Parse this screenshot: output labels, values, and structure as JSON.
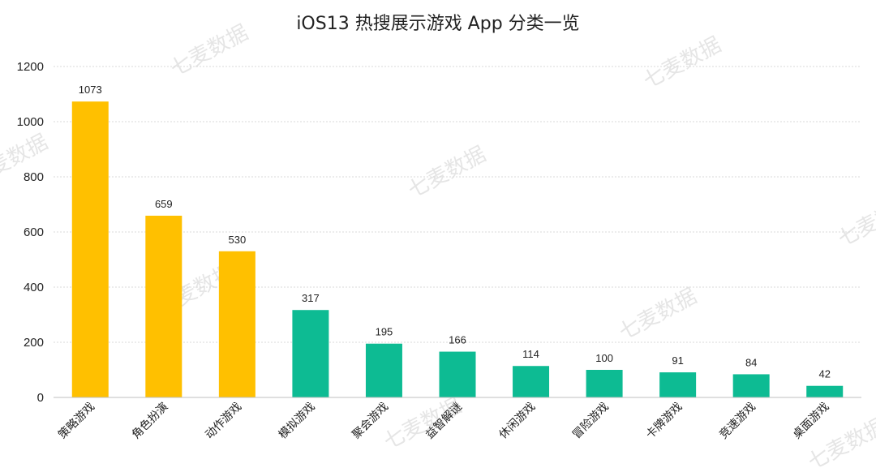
{
  "chart_data": {
    "type": "bar",
    "title": "iOS13 热搜展示游戏 App 分类一览",
    "categories": [
      "策略游戏",
      "角色扮演",
      "动作游戏",
      "模拟游戏",
      "聚会游戏",
      "益智解谜",
      "休闲游戏",
      "冒险游戏",
      "卡牌游戏",
      "竞速游戏",
      "桌面游戏"
    ],
    "values": [
      1073,
      659,
      530,
      317,
      195,
      166,
      114,
      100,
      91,
      84,
      42
    ],
    "colors": [
      "#FFC000",
      "#FFC000",
      "#FFC000",
      "#0DBB93",
      "#0DBB93",
      "#0DBB93",
      "#0DBB93",
      "#0DBB93",
      "#0DBB93",
      "#0DBB93",
      "#0DBB93"
    ],
    "ylim": [
      0,
      1200
    ],
    "yticks": [
      0,
      200,
      400,
      600,
      800,
      1000,
      1200
    ],
    "grid": true,
    "legend": "none"
  },
  "watermark": "七麦数据"
}
